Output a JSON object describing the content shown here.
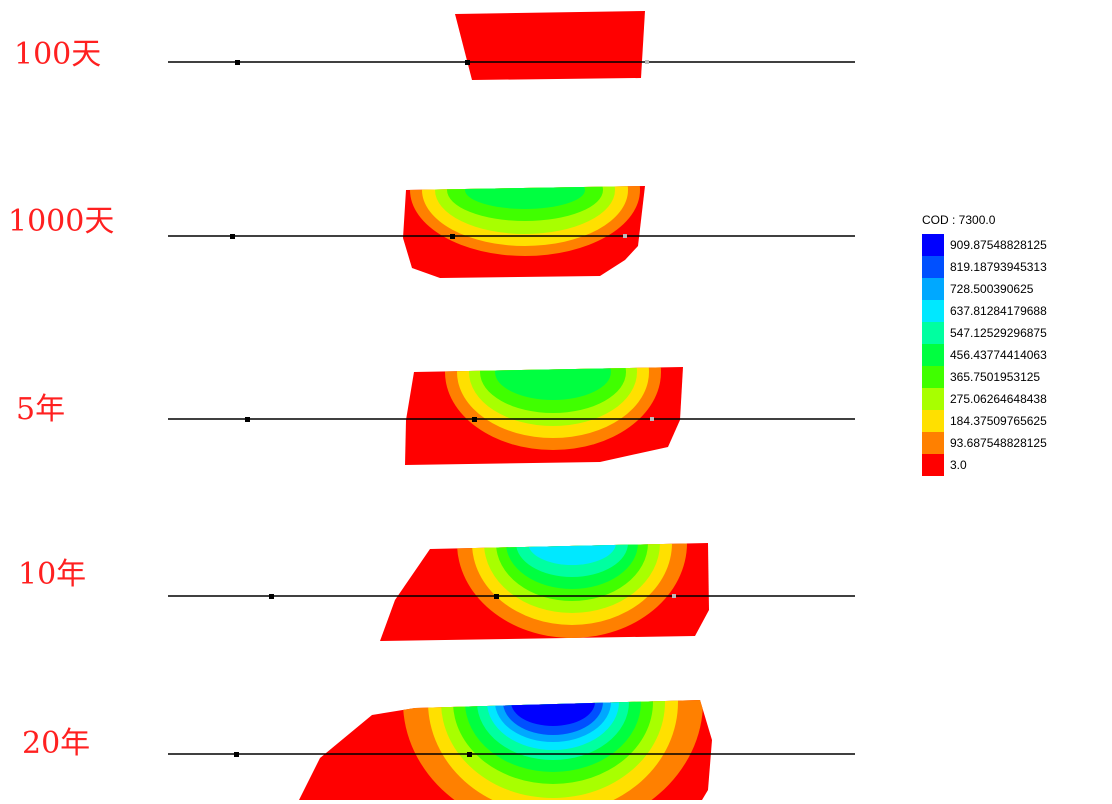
{
  "panels": [
    {
      "label": "100天"
    },
    {
      "label": "1000天"
    },
    {
      "label": "5年"
    },
    {
      "label": "10年"
    },
    {
      "label": "20年"
    }
  ],
  "legend": {
    "title": "COD : 7300.0",
    "items": [
      {
        "label": "909.87548828125",
        "color": "#0000ff"
      },
      {
        "label": "819.18793945313",
        "color": "#0050ff"
      },
      {
        "label": "728.500390625",
        "color": "#00a8ff"
      },
      {
        "label": "637.81284179688",
        "color": "#00e8ff"
      },
      {
        "label": "547.12529296875",
        "color": "#00ffa0"
      },
      {
        "label": "456.43774414063",
        "color": "#00ff40"
      },
      {
        "label": "365.7501953125",
        "color": "#40ff00"
      },
      {
        "label": "275.06264648438",
        "color": "#a8ff00"
      },
      {
        "label": "184.37509765625",
        "color": "#ffe000"
      },
      {
        "label": "93.687548828125",
        "color": "#ff8000"
      },
      {
        "label": "3.0",
        "color": "#ff0000"
      }
    ]
  }
}
